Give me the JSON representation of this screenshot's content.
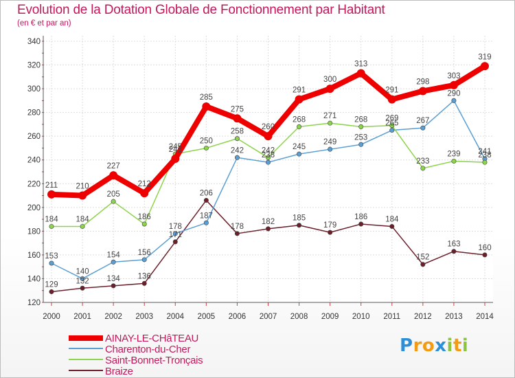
{
  "chart_data": {
    "type": "line",
    "title": "Evolution de la Dotation Globale de Fonctionnement par Habitant",
    "subtitle": "(en € et par an)",
    "xlabel": "",
    "ylabel": "",
    "categories": [
      "2000",
      "2001",
      "2002",
      "2003",
      "2004",
      "2005",
      "2006",
      "2007",
      "2008",
      "2009",
      "2010",
      "2011",
      "2012",
      "2013",
      "2014"
    ],
    "ylim": [
      120,
      340
    ],
    "yticks": [
      120,
      140,
      160,
      180,
      200,
      220,
      240,
      260,
      280,
      300,
      320,
      340
    ],
    "grid": true,
    "legend_position": "bottom-left",
    "series": [
      {
        "name": "Braize",
        "color": "#6b1f2a",
        "values": [
          129,
          132,
          134,
          136,
          171,
          206,
          178,
          182,
          185,
          179,
          186,
          184,
          152,
          163,
          160
        ],
        "labels": [
          "129",
          "132",
          "134",
          "136",
          "171",
          "206",
          "178",
          "182",
          "185",
          "179",
          "186",
          "184",
          "152",
          "163",
          "160"
        ]
      },
      {
        "name": "Charenton-du-Cher",
        "color": "#5a9fd4",
        "values": [
          153,
          140,
          154,
          156,
          178,
          187,
          242,
          238,
          245,
          249,
          253,
          265,
          267,
          290,
          241
        ],
        "labels": [
          "153",
          "140",
          "154",
          "156",
          "178",
          "187",
          "242",
          "238",
          "245",
          "249",
          "253",
          "265",
          "267",
          "290",
          "241"
        ]
      },
      {
        "name": "Saint-Bonnet-Tronçais",
        "color": "#8cd44a",
        "values": [
          184,
          184,
          205,
          186,
          245,
          250,
          258,
          242,
          268,
          271,
          268,
          269,
          233,
          239,
          238
        ],
        "labels": [
          "184",
          "184",
          "205",
          "186",
          "245",
          "250",
          "258",
          "242",
          "268",
          "271",
          "268",
          "269",
          "233",
          "239",
          "238"
        ]
      },
      {
        "name": "AINAY-LE-CHâTEAU",
        "color": "#ee0000",
        "values": [
          211,
          210,
          227,
          212,
          241,
          285,
          275,
          260,
          291,
          300,
          313,
          291,
          298,
          303,
          319
        ],
        "labels": [
          "211",
          "210",
          "227",
          "212",
          "241",
          "285",
          "275",
          "260",
          "291",
          "300",
          "313",
          "291",
          "298",
          "303",
          "319"
        ]
      }
    ]
  },
  "legend": {
    "items": [
      {
        "label": "AINAY-LE-CHâTEAU",
        "color": "#ee0000"
      },
      {
        "label": "Charenton-du-Cher",
        "color": "#5a9fd4"
      },
      {
        "label": "Saint-Bonnet-Tronçais",
        "color": "#8cd44a"
      },
      {
        "label": "Braize",
        "color": "#6b1f2a"
      }
    ]
  },
  "logo": {
    "letters": [
      "P",
      "r",
      "o",
      "x",
      "i",
      "t",
      "i"
    ],
    "colors": [
      "#2f8fd6",
      "#f39c12",
      "#f39c12",
      "#2f8fd6",
      "#8cc63f",
      "#f39c12",
      "#8cc63f"
    ]
  }
}
